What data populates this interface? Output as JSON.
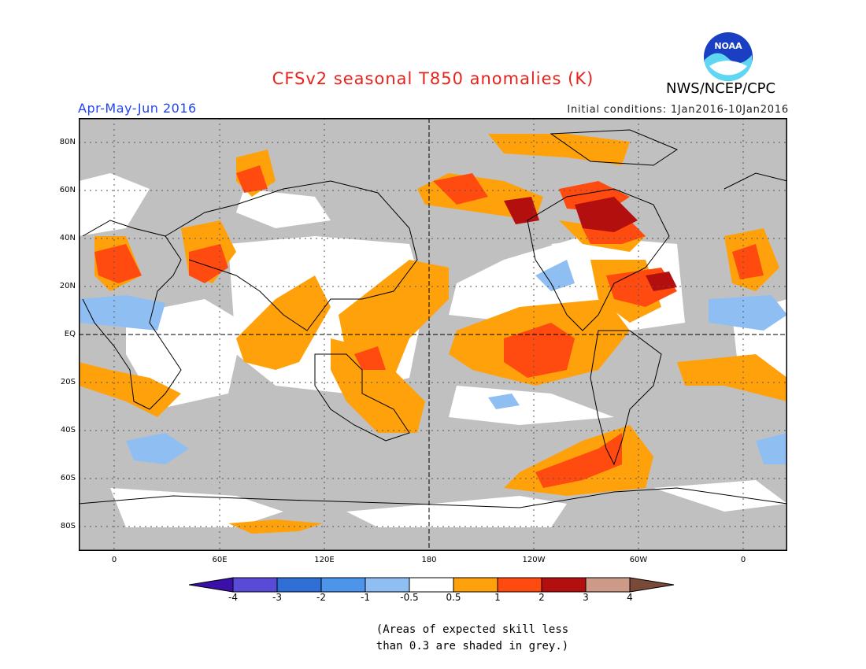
{
  "header": {
    "title": "CFSv2 seasonal T850 anomalies (K)",
    "season": "Apr-May-Jun 2016",
    "initial_conditions": "Initial conditions: 1Jan2016-10Jan2016",
    "agency": "NWS/NCEP/CPC",
    "logo_text": "NOAA"
  },
  "axes": {
    "lat_labels": [
      "80N",
      "60N",
      "40N",
      "20N",
      "EQ",
      "20S",
      "40S",
      "60S",
      "80S"
    ],
    "lon_labels": [
      "0",
      "60E",
      "120E",
      "180",
      "120W",
      "60W",
      "0"
    ]
  },
  "colorbar": {
    "labels": [
      "-4",
      "-3",
      "-2",
      "-1",
      "-0.5",
      "0.5",
      "1",
      "2",
      "3",
      "4"
    ],
    "colors": [
      "#3a10a8",
      "#5a4bd6",
      "#2f6fd6",
      "#4c95ea",
      "#8fbff2",
      "#ffffff",
      "#ffa10a",
      "#ff4a10",
      "#b30f0f",
      "#cc9a86",
      "#7a4a38"
    ]
  },
  "note": {
    "line1": "(Areas of expected skill less",
    "line2": "than 0.3 are shaded in grey.)"
  }
}
